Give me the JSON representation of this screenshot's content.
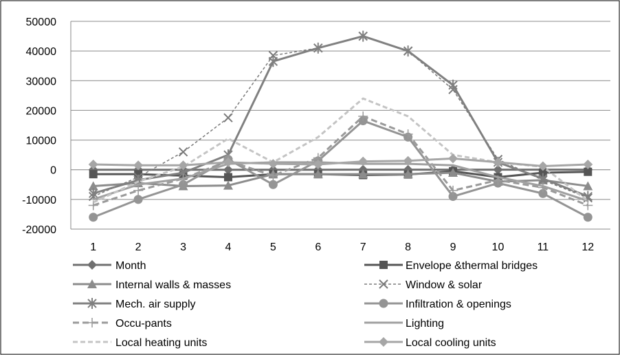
{
  "chart_data": {
    "type": "line",
    "title": "",
    "xlabel": "",
    "ylabel": "",
    "x": [
      1,
      2,
      3,
      4,
      5,
      6,
      7,
      8,
      9,
      10,
      11,
      12
    ],
    "ylim": [
      -20000,
      50000
    ],
    "yticks": [
      -20000,
      -10000,
      0,
      10000,
      20000,
      30000,
      40000,
      50000
    ],
    "grid": "horizontal",
    "legend_position": "bottom",
    "series": [
      {
        "name": "Month",
        "color": "#707070",
        "dash": "",
        "marker": "diamond",
        "values": [
          1,
          2,
          3,
          4,
          5,
          6,
          7,
          8,
          9,
          10,
          11,
          12
        ]
      },
      {
        "name": "Envelope &thermal bridges",
        "color": "#555555",
        "dash": "",
        "marker": "square",
        "values": [
          -1500,
          -1500,
          -2000,
          -2500,
          -1500,
          -1500,
          -1800,
          -1600,
          -500,
          -2500,
          -1000,
          -700
        ]
      },
      {
        "name": "Internal walls & masses",
        "color": "#8c8c8c",
        "dash": "",
        "marker": "triangle",
        "values": [
          -5500,
          -4500,
          -5500,
          -5300,
          -1500,
          -1500,
          -1500,
          -1500,
          -1000,
          -4000,
          -3500,
          -5500
        ]
      },
      {
        "name": "Window & solar",
        "color": "#7a7a7a",
        "dash": "4,3",
        "marker": "x",
        "values": [
          -9000,
          -2500,
          6000,
          17500,
          38500,
          41000,
          45000,
          40000,
          27000,
          3500,
          -3500,
          -9500
        ]
      },
      {
        "name": "Mech. air supply",
        "color": "#808080",
        "dash": "",
        "marker": "star",
        "values": [
          -8000,
          -3500,
          -1000,
          5000,
          36500,
          41000,
          45000,
          40000,
          28500,
          2500,
          -3000,
          -9000
        ]
      },
      {
        "name": "Infiltration  & openings",
        "color": "#949494",
        "dash": "",
        "marker": "circle",
        "values": [
          -16000,
          -10000,
          -5000,
          3500,
          -5000,
          3000,
          16500,
          11000,
          -9000,
          -4500,
          -8000,
          -16000
        ]
      },
      {
        "name": "Occu-pants",
        "color": "#9a9a9a",
        "dash": "9,5",
        "marker": "plus",
        "values": [
          -12000,
          -7000,
          -3000,
          3000,
          -2000,
          4000,
          18000,
          12000,
          -7000,
          -3500,
          -6000,
          -12000
        ]
      },
      {
        "name": "Lighting",
        "color": "#a0a0a0",
        "dash": "",
        "marker": "none",
        "values": [
          -10000,
          -5000,
          -3000,
          2000,
          2500,
          2500,
          2000,
          2000,
          1500,
          -2500,
          -5500,
          -10500
        ]
      },
      {
        "name": "Local heating units",
        "color": "#c4c4c4",
        "dash": "7,4",
        "marker": "none",
        "values": [
          -11000,
          -4000,
          1000,
          10500,
          2500,
          11000,
          24000,
          18000,
          5000,
          2500,
          1000,
          -10500
        ]
      },
      {
        "name": "Local cooling units",
        "color": "#a6a6a6",
        "dash": "",
        "marker": "diamond",
        "values": [
          1800,
          1500,
          1500,
          2500,
          2000,
          1800,
          2800,
          3000,
          3800,
          2500,
          1200,
          1800
        ]
      }
    ]
  }
}
